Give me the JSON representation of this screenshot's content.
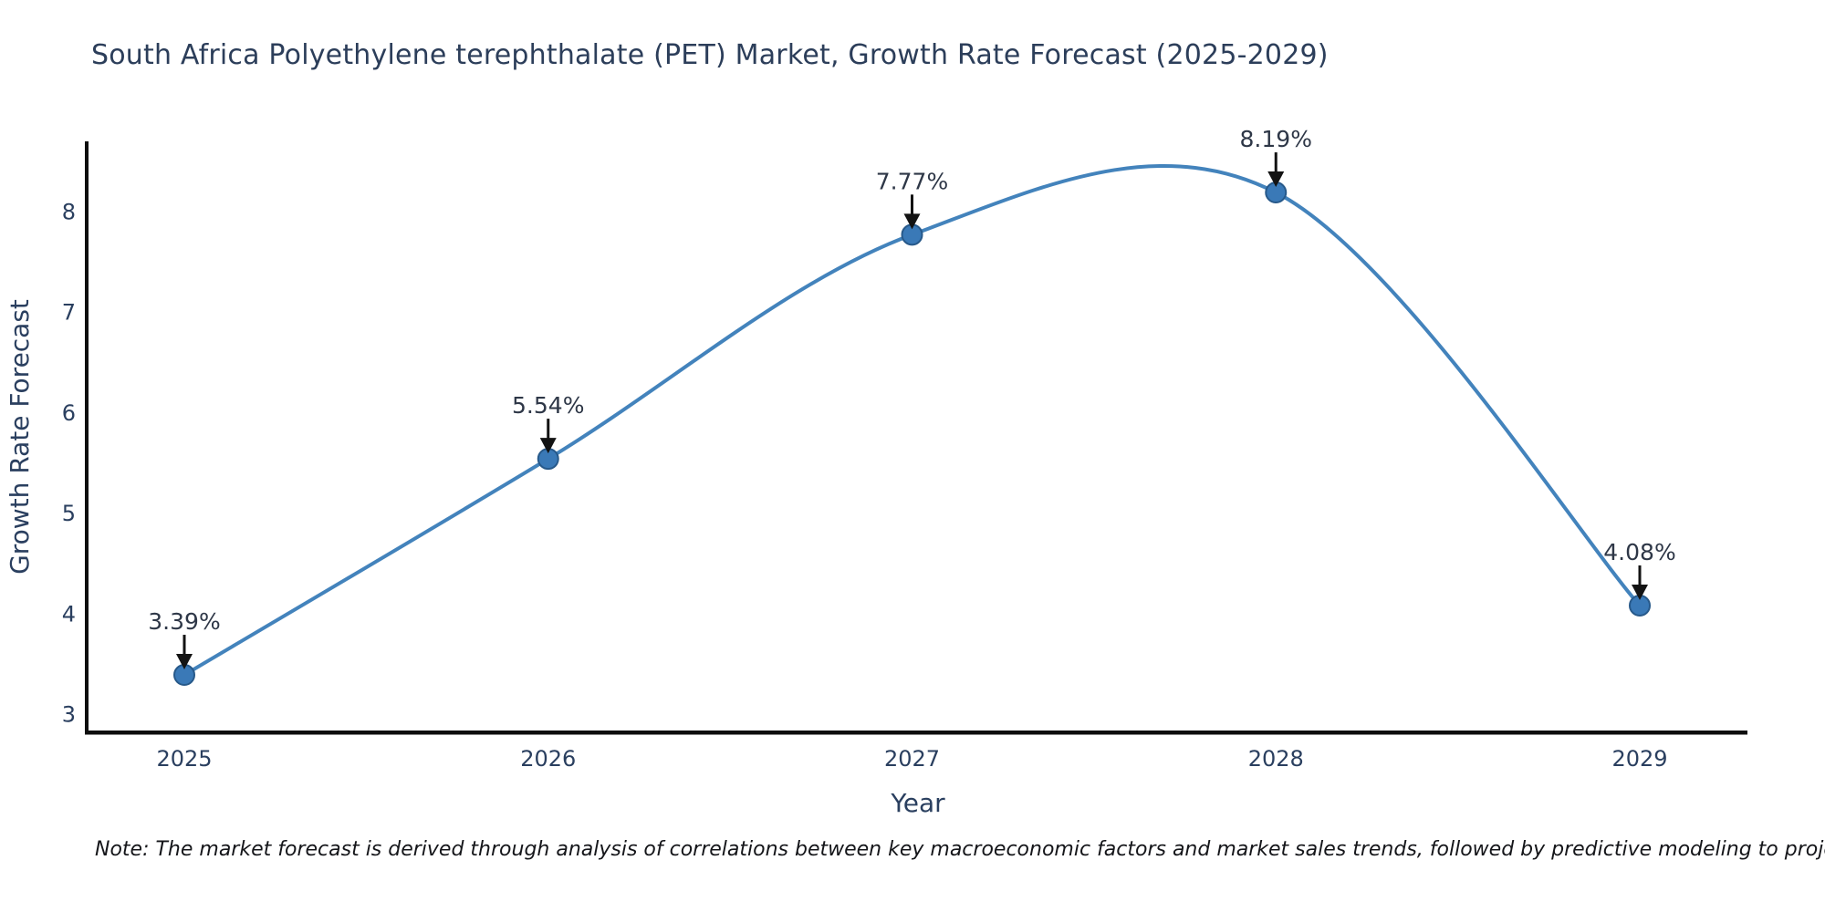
{
  "note": "Note: The market forecast is derived through analysis of correlations between key macroeconomic factors and market sales trends, followed by predictive modeling to project future sales.",
  "chart_data": {
    "type": "line",
    "title": "South Africa Polyethylene terephthalate (PET) Market, Growth Rate Forecast (2025-2029)",
    "x": [
      2025,
      2026,
      2027,
      2028,
      2029
    ],
    "values": [
      3.39,
      5.54,
      7.77,
      8.19,
      4.08
    ],
    "point_labels": [
      "3.39%",
      "5.54%",
      "7.77%",
      "8.19%",
      "4.08%"
    ],
    "xlabel": "Year",
    "ylabel": "Growth Rate Forecast",
    "xticks": [
      "2025",
      "2026",
      "2027",
      "2028",
      "2029"
    ],
    "yticks": [
      3,
      4,
      5,
      6,
      7,
      8
    ],
    "ylim": [
      2.85,
      8.7
    ],
    "grid": false,
    "legend": "none",
    "smooth": true,
    "line_color": "#4383bc",
    "marker_color": "#3a79b7",
    "marker_edge_color": "#27598a",
    "annotation_arrow_color": "#131313",
    "axis_spine_color": "#0e0e0e",
    "text_color": "#2a3f5f"
  }
}
